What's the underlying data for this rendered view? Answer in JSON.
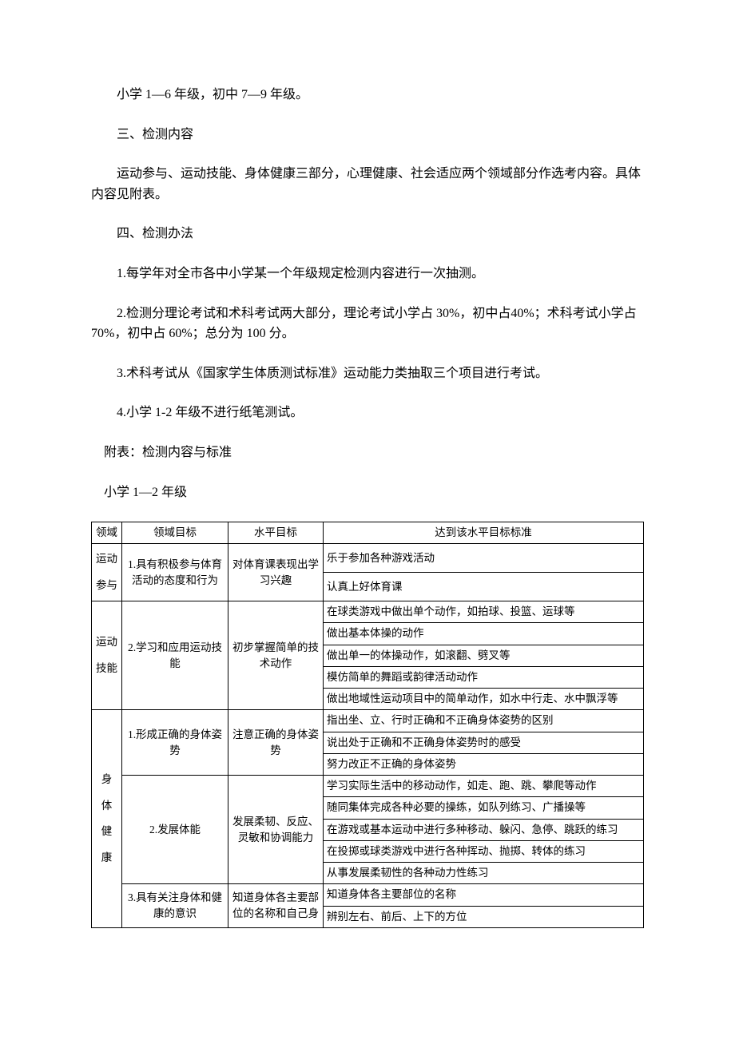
{
  "para1": "小学 1—6 年级，初中 7—9 年级。",
  "para2": "三、检测内容",
  "para3": "运动参与、运动技能、身体健康三部分，心理健康、社会适应两个领域部分作选考内容。具体内容见附表。",
  "para4": "四、检测办法",
  "para5": "1.每学年对全市各中小学某一个年级规定检测内容进行一次抽测。",
  "para6": "2.检测分理论考试和术科考试两大部分，理论考试小学占 30%，初中占40%；术科考试小学占 70%，初中占 60%；总分为 100 分。",
  "para7": "3.术科考试从《国家学生体质测试标准》运动能力类抽取三个项目进行考试。",
  "para8": "4.小学 1-2 年级不进行纸笔测试。",
  "para9": "附表：检测内容与标准",
  "para10": "小学 1—2 年级",
  "table": {
    "header": {
      "c1": "领域",
      "c2": "领域目标",
      "c3": "水平目标",
      "c4": "达到该水平目标标准"
    },
    "section1": {
      "domain": "运动\n参与",
      "target": "1.具有积极参与体育活动的态度和行为",
      "level": "对体育课表现出学习兴趣",
      "rows": [
        "乐于参加各种游戏活动",
        "认真上好体育课"
      ]
    },
    "section2": {
      "domain": "运动\n技能",
      "target": "2.学习和应用运动技能",
      "level": "初步掌握简单的技术动作",
      "rows": [
        "在球类游戏中做出单个动作，如拍球、投篮、运球等",
        "做出基本体操的动作",
        "做出单一的体操动作，如滚翻、劈叉等",
        "模仿简单的舞蹈或韵律活动动作",
        "做出地域性运动项目中的简单动作，如水中行走、水中飘浮等"
      ]
    },
    "section3": {
      "domain": "身\n体\n健\n康",
      "part1": {
        "target": "1.形成正确的身体姿势",
        "level": "注意正确的身体姿势",
        "rows": [
          "指出坐、立、行时正确和不正确身体姿势的区别",
          "说出处于正确和不正确身体姿势时的感受",
          "努力改正不正确的身体姿势"
        ]
      },
      "part2": {
        "target": "2.发展体能",
        "level": "发展柔韧、反应、灵敏和协调能力",
        "rows": [
          "学习实际生活中的移动动作，如走、跑、跳、攀爬等动作",
          "随同集体完成各种必要的操练，如队列练习、广播操等",
          "在游戏或基本运动中进行多种移动、躲闪、急停、跳跃的练习",
          "在投掷或球类游戏中进行各种挥动、抛掷、转体的练习",
          "从事发展柔韧性的各种动力性练习"
        ]
      },
      "part3": {
        "target": "3.具有关注身体和健康的意识",
        "level": "知道身体各主要部位的名称和自己身",
        "rows": [
          "知道身体各主要部位的名称",
          "辨别左右、前后、上下的方位"
        ]
      }
    }
  }
}
